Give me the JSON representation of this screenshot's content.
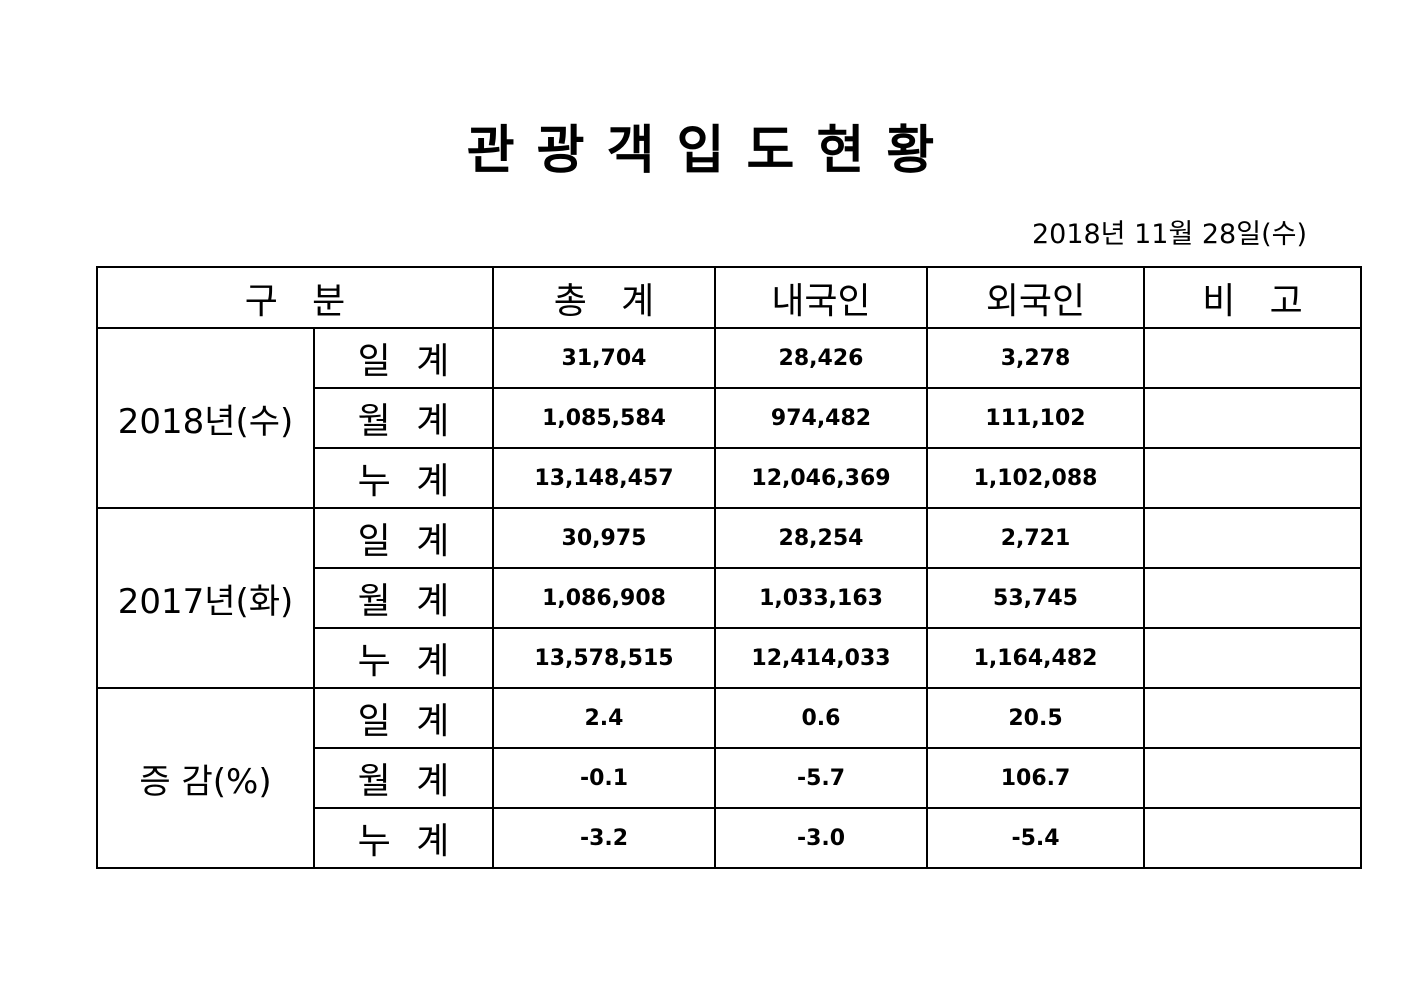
{
  "header": {
    "title": "관 광 객 입 도 현 황",
    "date": "2018년  11월  28일(수)"
  },
  "table": {
    "columns": [
      "구   분",
      "총   계",
      "내국인",
      "외국인",
      "비   고"
    ],
    "groups": [
      {
        "label": "2018년(수)",
        "rows": [
          {
            "label": "일 계",
            "values": [
              "31,704",
              "28,426",
              "3,278"
            ]
          },
          {
            "label": "월 계",
            "values": [
              "1,085,584",
              "974,482",
              "111,102"
            ]
          },
          {
            "label": "누 계",
            "values": [
              "13,148,457",
              "12,046,369",
              "1,102,088"
            ]
          }
        ]
      },
      {
        "label": "2017년(화)",
        "rows": [
          {
            "label": "일 계",
            "values": [
              "30,975",
              "28,254",
              "2,721"
            ]
          },
          {
            "label": "월 계",
            "values": [
              "1,086,908",
              "1,033,163",
              "53,745"
            ]
          },
          {
            "label": "누 계",
            "values": [
              "13,578,515",
              "12,414,033",
              "1,164,482"
            ]
          }
        ]
      },
      {
        "label": "증 감(%)",
        "rows": [
          {
            "label": "일 계",
            "values": [
              "2.4",
              "0.6",
              "20.5"
            ]
          },
          {
            "label": "월 계",
            "values": [
              "-0.1",
              "-5.7",
              "106.7"
            ]
          },
          {
            "label": "누 계",
            "values": [
              "-3.2",
              "-3.0",
              "-5.4"
            ]
          }
        ]
      }
    ]
  }
}
